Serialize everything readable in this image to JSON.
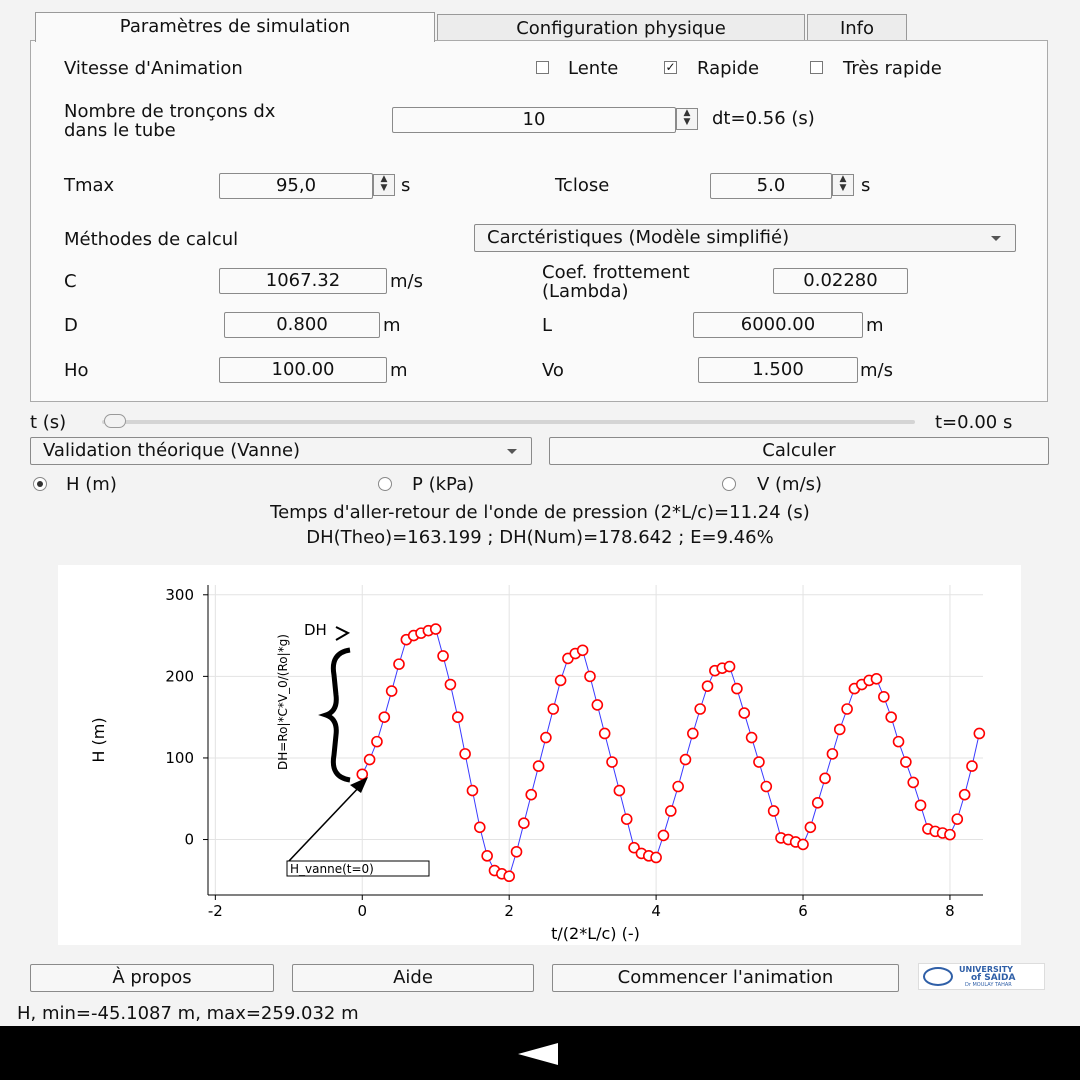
{
  "tabs": [
    "Paramètres de simulation",
    "Configuration physique",
    "Info"
  ],
  "speed": {
    "label": "Vitesse d'Animation",
    "options": [
      {
        "label": "Lente",
        "checked": false
      },
      {
        "label": "Rapide",
        "checked": true
      },
      {
        "label": "Très rapide",
        "checked": false
      }
    ]
  },
  "segments": {
    "label_line1": "Nombre de tronçons dx",
    "label_line2": "dans le tube",
    "value": "10",
    "dt": "dt=0.56 (s)"
  },
  "tmax": {
    "label": "Tmax",
    "value": "95,0",
    "unit": "s"
  },
  "tclose": {
    "label": "Tclose",
    "value": "5.0",
    "unit": "s"
  },
  "method": {
    "label": "Méthodes de calcul",
    "value": "Carctéristiques (Modèle simplifié)"
  },
  "c": {
    "label": "C",
    "value": "1067.32",
    "unit": "m/s"
  },
  "friction": {
    "label_line1": "Coef. frottement",
    "label_line2": "(Lambda)",
    "value": "0.02280"
  },
  "d": {
    "label": "D",
    "value": "0.800",
    "unit": "m"
  },
  "l": {
    "label": "L",
    "value": "6000.00",
    "unit": "m"
  },
  "ho": {
    "label": "Ho",
    "value": "100.00",
    "unit": "m"
  },
  "vo": {
    "label": "Vo",
    "value": "1.500",
    "unit": "m/s"
  },
  "time_slider": {
    "label": "t (s)",
    "readout": "t=0.00 s",
    "progress": 0
  },
  "validation": {
    "value": "Validation théorique (Vanne)",
    "calc_button": "Calculer"
  },
  "output_radios": [
    {
      "label": "H (m)",
      "selected": true
    },
    {
      "label": "P (kPa)",
      "selected": false
    },
    {
      "label": "V (m/s)",
      "selected": false
    }
  ],
  "info_line1": "Temps d'aller-retour de l'onde de pression (2*L/c)=11.24 (s)",
  "info_line2": "DH(Theo)=163.199 ; DH(Num)=178.642 ; E=9.46%",
  "buttons": {
    "about": "À propos",
    "help": "Aide",
    "animate": "Commencer l'animation"
  },
  "logo": {
    "text_line1": "UNIVERSITY",
    "text_line2": "of SAIDA",
    "text_line3": "Dr MOULAY TAHAR"
  },
  "status": "H, min=-45.1087 m, max=259.032 m",
  "colors": {
    "line": "#3a3aff",
    "marker": "#ff0000",
    "background": "#f3f3f3"
  },
  "chart_data": {
    "type": "line",
    "xlabel": "t/(2*L/c) (-)",
    "ylabel": "H (m)",
    "xlim": [
      -2.1,
      8.45
    ],
    "ylim": [
      -68,
      312
    ],
    "xticks": [
      -2,
      0,
      2,
      4,
      6,
      8
    ],
    "yticks": [
      0,
      100,
      200,
      300
    ],
    "annotations": {
      "dh": "DH",
      "formula": "DH=Ro|*C*V_0/(Ro|*g)",
      "arrow_label": "H_vanne(t=0)"
    },
    "series": [
      {
        "markers": "open-circle",
        "x": [
          0,
          0.1,
          0.2,
          0.3,
          0.4,
          0.5,
          0.6,
          0.7,
          0.8,
          0.9,
          1.0,
          1.1,
          1.2,
          1.3,
          1.4,
          1.5,
          1.6,
          1.7,
          1.8,
          1.9,
          2.0,
          2.1,
          2.2,
          2.3,
          2.4,
          2.5,
          2.6,
          2.7,
          2.8,
          2.9,
          3.0,
          3.1,
          3.2,
          3.3,
          3.4,
          3.5,
          3.6,
          3.7,
          3.8,
          3.9,
          4.0,
          4.1,
          4.2,
          4.3,
          4.4,
          4.5,
          4.6,
          4.7,
          4.8,
          4.9,
          5.0,
          5.1,
          5.2,
          5.3,
          5.4,
          5.5,
          5.6,
          5.7,
          5.8,
          5.9,
          6.0,
          6.1,
          6.2,
          6.3,
          6.4,
          6.5,
          6.6,
          6.7,
          6.8,
          6.9,
          7.0,
          7.1,
          7.2,
          7.3,
          7.4,
          7.5,
          7.6,
          7.7,
          7.8,
          7.9,
          8.0,
          8.1,
          8.2,
          8.3,
          8.4
        ],
        "y": [
          80,
          98,
          120,
          150,
          182,
          215,
          245,
          250,
          253,
          256,
          258,
          225,
          190,
          150,
          105,
          60,
          15,
          -20,
          -38,
          -42,
          -45,
          -15,
          20,
          55,
          90,
          125,
          160,
          195,
          222,
          228,
          232,
          200,
          165,
          130,
          95,
          60,
          25,
          -10,
          -17,
          -20,
          -22,
          5,
          35,
          65,
          98,
          130,
          160,
          188,
          207,
          210,
          212,
          185,
          155,
          125,
          95,
          65,
          35,
          2,
          0,
          -3,
          -6,
          15,
          45,
          75,
          105,
          135,
          160,
          185,
          190,
          195,
          197,
          175,
          150,
          120,
          95,
          70,
          42,
          13,
          10,
          8,
          6,
          25,
          55,
          90,
          130
        ]
      }
    ]
  }
}
